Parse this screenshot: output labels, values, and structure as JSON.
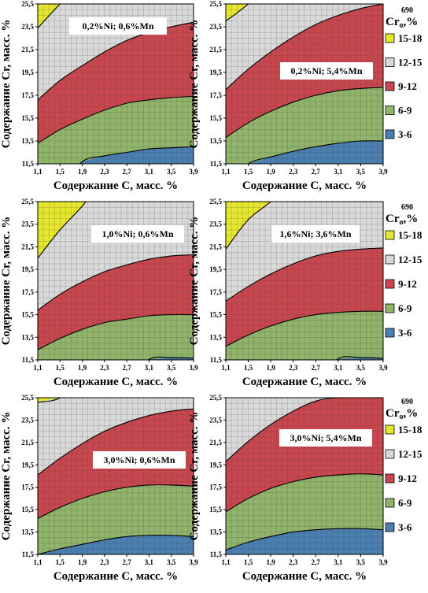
{
  "chart_data": {
    "type": "area",
    "x_axis_label": "Содержание С, масс. %",
    "y_axis_label": "Содержание Cr, масс. %",
    "x_ticks": [
      "1,1",
      "1,5",
      "1,9",
      "2,3",
      "2,7",
      "3,1",
      "3,5",
      "3,9"
    ],
    "y_ticks": [
      "11,5",
      "13,5",
      "15,5",
      "17,5",
      "19,5",
      "21,5",
      "23,5",
      "25,5"
    ],
    "xlim": [
      1.1,
      3.9
    ],
    "ylim": [
      11.5,
      25.5
    ],
    "legend": {
      "title_main": "Cr",
      "title_sub": "o",
      "title_sup": "690",
      "title_suffix": ",%",
      "entries": [
        {
          "label": "15-18",
          "color": "#e6e62e"
        },
        {
          "label": "12-15",
          "color": "#d9d9d9"
        },
        {
          "label": "9-12",
          "color": "#c8474e"
        },
        {
          "label": "6-9",
          "color": "#8fb46a"
        },
        {
          "label": "3-6",
          "color": "#4a7fb0"
        }
      ]
    },
    "x": [
      1.1,
      1.5,
      1.9,
      2.3,
      2.7,
      3.1,
      3.5,
      3.9
    ],
    "panels": [
      {
        "label": "0,2%Ni; 0,6%Mn",
        "boundaries": {
          "b3_6": [
            null,
            null,
            11.7,
            12.2,
            12.5,
            12.8,
            12.9,
            13.0
          ],
          "b6_9": [
            13.3,
            14.5,
            15.4,
            16.2,
            16.8,
            17.1,
            17.3,
            17.4
          ],
          "b9_12": [
            17.1,
            18.8,
            20.1,
            21.3,
            22.3,
            23.0,
            23.5,
            23.9
          ],
          "b12_15": [
            23.4,
            25.5,
            null,
            null,
            null,
            null,
            null,
            null
          ]
        }
      },
      {
        "label": "0,2%Ni; 5,4%Mn",
        "boundaries": {
          "b3_6": [
            null,
            11.5,
            12.1,
            12.6,
            13.0,
            13.3,
            13.5,
            13.5
          ],
          "b6_9": [
            13.8,
            15.1,
            16.1,
            16.9,
            17.5,
            17.9,
            18.1,
            18.2
          ],
          "b9_12": [
            18.0,
            19.8,
            21.3,
            22.6,
            23.7,
            24.5,
            25.1,
            25.5
          ],
          "b12_15": [
            24.0,
            25.5,
            null,
            null,
            null,
            null,
            null,
            null
          ]
        }
      },
      {
        "label": "1,0%Ni; 0,6%Mn",
        "boundaries": {
          "b3_6": [
            null,
            null,
            null,
            null,
            null,
            11.55,
            11.7,
            11.65
          ],
          "b6_9": [
            12.4,
            13.4,
            14.2,
            14.8,
            15.1,
            15.4,
            15.5,
            15.5
          ],
          "b9_12": [
            15.9,
            17.3,
            18.4,
            19.3,
            19.9,
            20.4,
            20.7,
            20.8
          ],
          "b12_15": [
            20.5,
            23.0,
            25.1,
            null,
            null,
            null,
            null,
            null
          ]
        }
      },
      {
        "label": "1,6%Ni; 3,6%Mn",
        "boundaries": {
          "b3_6": [
            null,
            null,
            null,
            null,
            null,
            11.6,
            11.7,
            11.65
          ],
          "b6_9": [
            12.7,
            13.7,
            14.5,
            15.1,
            15.5,
            15.7,
            15.8,
            15.8
          ],
          "b9_12": [
            16.7,
            18.0,
            19.1,
            20.0,
            20.7,
            21.1,
            21.3,
            21.4
          ],
          "b12_15": [
            21.3,
            23.9,
            25.5,
            null,
            null,
            null,
            null,
            null
          ]
        }
      },
      {
        "label": "3,0%Ni; 0,6%Mn",
        "boundaries": {
          "b3_6": [
            11.5,
            12.0,
            12.4,
            12.8,
            13.1,
            13.2,
            13.2,
            13.1
          ],
          "b6_9": [
            14.7,
            15.7,
            16.5,
            17.1,
            17.5,
            17.7,
            17.7,
            17.6
          ],
          "b9_12": [
            18.6,
            20.1,
            21.4,
            22.5,
            23.3,
            23.9,
            24.3,
            24.5
          ],
          "b12_15": [
            25.1,
            25.5,
            null,
            null,
            null,
            null,
            null,
            null
          ]
        }
      },
      {
        "label": "3,0%Ni; 5,4%Mn",
        "boundaries": {
          "b3_6": [
            11.9,
            12.6,
            13.1,
            13.5,
            13.7,
            13.8,
            13.8,
            13.7
          ],
          "b6_9": [
            15.3,
            16.5,
            17.4,
            18.0,
            18.4,
            18.6,
            18.7,
            18.6
          ],
          "b9_12": [
            19.8,
            21.6,
            23.1,
            24.3,
            25.2,
            25.5,
            25.5,
            25.5
          ],
          "b12_15": [
            null,
            null,
            null,
            null,
            null,
            null,
            null,
            null
          ]
        }
      }
    ]
  }
}
